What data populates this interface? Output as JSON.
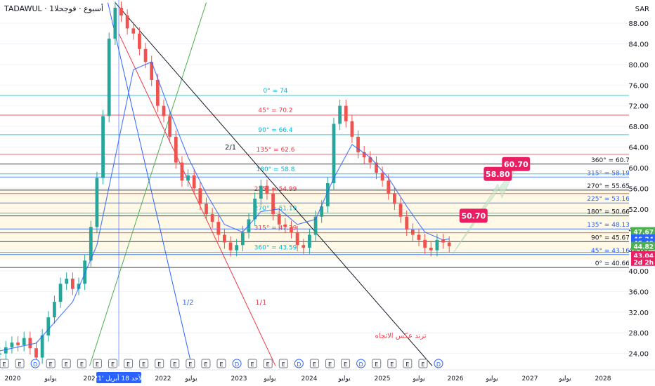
{
  "header": {
    "symbol": "TADAWUL",
    "interval_label": "1أسبوع · فوجحلا",
    "currency": "SAR"
  },
  "chart_data": {
    "type": "line",
    "xlabel": "",
    "ylabel": "",
    "x_ticks": [
      "2020",
      "يوليو",
      "2021",
      "2022",
      "يوليو",
      "2023",
      "يوليو",
      "2024",
      "يوليو",
      "2025",
      "يوليو",
      "2026",
      "يوليو",
      "2027",
      "يوليو",
      "2028"
    ],
    "x_date_label": "الأحد 18 أبريل '21",
    "y_ticks": [
      88,
      84,
      80,
      76,
      72,
      68,
      64,
      60,
      56,
      52,
      48,
      44,
      40,
      36,
      32,
      28,
      24
    ],
    "ylim": [
      21.5,
      92.5
    ],
    "series": [
      {
        "name": "",
        "style": "candle",
        "x": [
          "2019-09",
          "2019-10",
          "2019-11",
          "2019-12",
          "2020-01",
          "2020-02",
          "2020-03",
          "2020-04",
          "2020-05",
          "2020-06",
          "2020-07",
          "2020-08",
          "2020-09",
          "2020-10",
          "2020-11",
          "2020-12",
          "2021-01",
          "2021-02",
          "2021-03",
          "2021-04",
          "2021-05",
          "2021-06",
          "2021-07",
          "2021-08",
          "2021-09",
          "2021-10",
          "2021-11",
          "2021-12",
          "2022-01",
          "2022-02",
          "2022-03",
          "2022-04",
          "2022-05",
          "2022-06",
          "2022-07",
          "2022-08",
          "2022-09",
          "2022-10",
          "2022-11",
          "2022-12",
          "2023-01",
          "2023-02",
          "2023-03",
          "2023-04",
          "2023-05",
          "2023-06",
          "2023-07",
          "2023-08",
          "2023-09",
          "2023-10",
          "2023-11",
          "2023-12",
          "2024-01",
          "2024-02",
          "2024-03",
          "2024-04",
          "2024-05",
          "2024-06",
          "2024-07",
          "2024-08",
          "2024-09",
          "2024-10",
          "2024-11",
          "2024-12",
          "2025-01",
          "2025-02",
          "2025-03",
          "2025-04",
          "2025-05",
          "2025-06",
          "2025-07",
          "2025-08",
          "2025-09",
          "2025-10",
          "2025-11"
        ],
        "values": [
          24.0,
          25.2,
          26.1,
          25.6,
          27.0,
          25.0,
          23.2,
          27.5,
          31.0,
          34.0,
          37.5,
          38.5,
          36.5,
          37.5,
          42.0,
          48.5,
          58.0,
          70.0,
          85.0,
          91.0,
          89.5,
          87.0,
          86.0,
          83.0,
          80.5,
          77.0,
          72.0,
          70.0,
          66.0,
          61.0,
          57.5,
          58.5,
          56.0,
          53.0,
          51.0,
          49.5,
          47.0,
          45.5,
          44.0,
          45.0,
          47.5,
          50.0,
          54.0,
          56.5,
          55.0,
          51.0,
          49.0,
          48.5,
          47.5,
          45.0,
          44.5,
          47.0,
          50.5,
          52.5,
          57.0,
          68.5,
          72.0,
          69.0,
          66.0,
          63.0,
          62.0,
          61.0,
          59.0,
          57.5,
          55.0,
          53.0,
          50.5,
          48.0,
          47.0,
          46.0,
          44.5,
          44.0,
          46.0,
          45.5,
          44.8
        ]
      },
      {
        "name": "",
        "style": "moving-average",
        "x": [
          "2019-09",
          "2020-03",
          "2020-09",
          "2021-01",
          "2021-04",
          "2021-07",
          "2021-10",
          "2022-01",
          "2022-04",
          "2022-07",
          "2022-10",
          "2023-01",
          "2023-04",
          "2023-07",
          "2023-10",
          "2024-01",
          "2024-04",
          "2024-07",
          "2024-10",
          "2025-01",
          "2025-04",
          "2025-07",
          "2025-10",
          "2025-11"
        ],
        "values": [
          24.5,
          26.0,
          34.0,
          45.0,
          62.0,
          79.0,
          80.5,
          71.0,
          62.0,
          55.0,
          49.0,
          47.5,
          51.5,
          52.0,
          49.0,
          50.0,
          58.0,
          64.5,
          62.0,
          58.0,
          52.5,
          47.5,
          46.0,
          46.2
        ]
      }
    ],
    "horizontal_levels": [
      {
        "label": "0° = 74",
        "value": 74,
        "color": "#00bcd4",
        "side": "center"
      },
      {
        "label": "45° = 70.2",
        "value": 70.2,
        "color": "#f23645",
        "side": "center"
      },
      {
        "label": "90° = 66.4",
        "value": 66.4,
        "color": "#00bcd4",
        "side": "center"
      },
      {
        "label": "135° = 62.6",
        "value": 62.6,
        "color": "#f23645",
        "side": "center"
      },
      {
        "label": "180° = 58.8",
        "value": 58.8,
        "color": "#00bcd4",
        "side": "center"
      },
      {
        "label": "225° = 54.99",
        "value": 54.99,
        "color": "#f23645",
        "side": "center"
      },
      {
        "label": "270° = 51.19",
        "value": 51.19,
        "color": "#00bcd4",
        "side": "center"
      },
      {
        "label": "315° = 47.39",
        "value": 47.39,
        "color": "#f23645",
        "side": "center"
      },
      {
        "label": "360° = 43.59",
        "value": 43.59,
        "color": "#00bcd4",
        "side": "center"
      },
      {
        "label": "360° = 60.7",
        "value": 60.7,
        "color": "#131722",
        "side": "right"
      },
      {
        "label": "315° = 58.19",
        "value": 58.19,
        "color": "#2962ff",
        "side": "right"
      },
      {
        "label": "270° = 55.65",
        "value": 55.65,
        "color": "#131722",
        "side": "right"
      },
      {
        "label": "225° = 53.16",
        "value": 53.16,
        "color": "#2962ff",
        "side": "right"
      },
      {
        "label": "180° = 50.66",
        "value": 50.66,
        "color": "#131722",
        "side": "right"
      },
      {
        "label": "135° = 48.13",
        "value": 48.13,
        "color": "#2962ff",
        "side": "right"
      },
      {
        "label": "90° = 45.67",
        "value": 45.67,
        "color": "#131722",
        "side": "right"
      },
      {
        "label": "45° = 43.16",
        "value": 43.16,
        "color": "#2962ff",
        "side": "right"
      },
      {
        "label": "0° = 40.66",
        "value": 40.66,
        "color": "#131722",
        "side": "right"
      }
    ],
    "price_badges": [
      {
        "text": "47.67",
        "value": 47.67,
        "color": "#4caf50"
      },
      {
        "text": "46.24",
        "value": 46.24,
        "color": "#2962ff"
      },
      {
        "text": "45.49",
        "value": 45.49,
        "color": "#2962ff"
      },
      {
        "text": "44.82",
        "value": 44.82,
        "color": "#4caf50"
      },
      {
        "text": "43.04",
        "value": 43.04,
        "color": "#e91e63"
      },
      {
        "text": "2d 2h",
        "value": 41.8,
        "color": "#e91e63"
      }
    ],
    "targets": [
      {
        "text": "50.70",
        "value": 50.7,
        "x": "2026-03"
      },
      {
        "text": "58.80",
        "value": 58.8,
        "x": "2026-07"
      },
      {
        "text": "60.70",
        "value": 60.7,
        "x": "2026-10"
      }
    ],
    "annotations": [
      {
        "text": "2/1",
        "x": "2022-11",
        "value": 63.5,
        "color": "#131722"
      },
      {
        "text": "1/2",
        "x": "2022-04",
        "value": 33.5,
        "color": "#2962ff"
      },
      {
        "text": "1/1",
        "x": "2023-04",
        "value": 33.5,
        "color": "#f23645"
      },
      {
        "text": "ترند عكس الاتجاه",
        "x": "2025-03",
        "value": 27.0,
        "color": "#f23645"
      }
    ],
    "event_markers": [
      "E",
      "E",
      "D",
      "E",
      "E",
      "E",
      "E",
      "E",
      "E",
      "E",
      "E",
      "E",
      "E",
      "E",
      "E",
      "D",
      "E",
      "E",
      "E",
      "D",
      "E",
      "E",
      "E",
      "D",
      "E",
      "E",
      "E",
      "E",
      "D"
    ],
    "grid": true,
    "legend": "none"
  }
}
